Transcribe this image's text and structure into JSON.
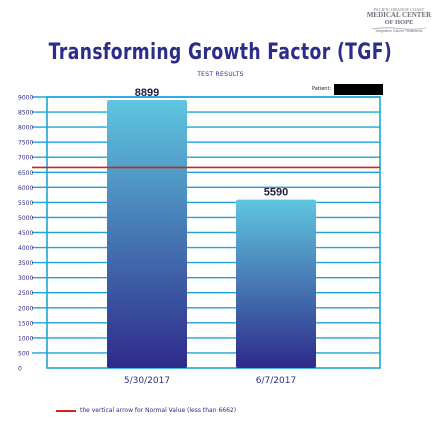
{
  "logo": {
    "line1": "PACIFIC ORANGE COAST",
    "line2": "MEDICAL CENTER",
    "line3": "OF HOPE",
    "line4": "Integrative Cancer Treatments"
  },
  "header": {
    "title": "Transforming Growth Factor (TGF)",
    "subtitle": "TEST RESULTS",
    "patient_label": "Patient:"
  },
  "colors": {
    "title": "#2c2c8a",
    "frame": "#1fa3d8",
    "bar_top": "#5fc6df",
    "bar_bottom": "#2e2a8a",
    "normal_line": "#d82020"
  },
  "chart_data": {
    "type": "bar",
    "title": "Transforming Growth Factor (TGF)",
    "subtitle": "TEST RESULTS",
    "categories": [
      "5/30/2017",
      "6/7/2017"
    ],
    "values": [
      8899,
      5590
    ],
    "y_ticks": [
      0,
      500,
      1000,
      1500,
      2000,
      2500,
      3000,
      3500,
      4000,
      4500,
      5000,
      5500,
      6000,
      6500,
      7000,
      7500,
      8000,
      8500,
      9000
    ],
    "ylim": [
      0,
      9000
    ],
    "grid": true,
    "reference_line": {
      "value": 6662
    }
  },
  "footnote": "the vertical arrow for Normal Value (less than 6662)"
}
